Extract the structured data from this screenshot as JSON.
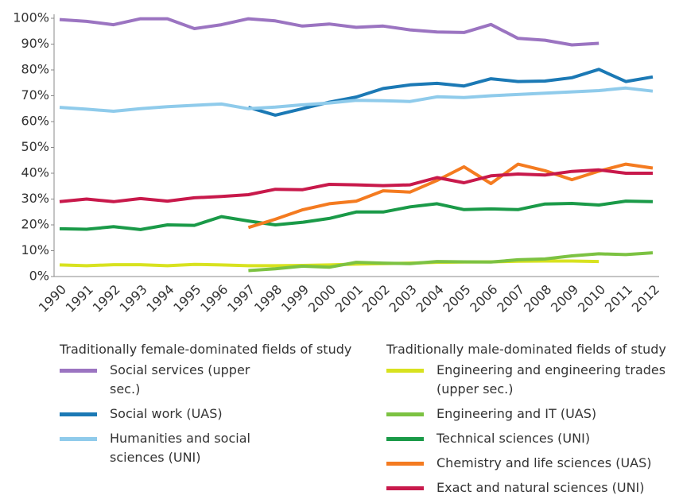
{
  "chart_data": {
    "type": "line",
    "categories": [
      "1990",
      "1991",
      "1992",
      "1993",
      "1994",
      "1995",
      "1996",
      "1997",
      "1998",
      "1999",
      "2000",
      "2001",
      "2002",
      "2003",
      "2004",
      "2005",
      "2006",
      "2007",
      "2008",
      "2009",
      "2010",
      "2011",
      "2012"
    ],
    "ylim": [
      0,
      100
    ],
    "yticks": [
      {
        "value": 0,
        "label": "0%"
      },
      {
        "value": 10,
        "label": "10%"
      },
      {
        "value": 20,
        "label": "20%"
      },
      {
        "value": 30,
        "label": "30%"
      },
      {
        "value": 40,
        "label": "40%"
      },
      {
        "value": 50,
        "label": "50%"
      },
      {
        "value": 60,
        "label": "60%"
      },
      {
        "value": 70,
        "label": "70%"
      },
      {
        "value": 80,
        "label": "80%"
      },
      {
        "value": 90,
        "label": "90%"
      },
      {
        "value": 100,
        "label": "100%"
      }
    ],
    "grid": false,
    "series_groups": [
      {
        "title": "Traditionally female-dominated fields of study",
        "series": [
          {
            "name": "Social services (upper sec.)",
            "color": "#9b74c1",
            "values": [
              99.5,
              98.8,
              97.5,
              99.8,
              99.8,
              96,
              97.5,
              99.8,
              99,
              97,
              97.8,
              96.5,
              97,
              95.5,
              94.7,
              94.5,
              97.6,
              92.2,
              91.5,
              89.7,
              90.3,
              null,
              null
            ]
          },
          {
            "name": "Social work (UAS)",
            "color": "#1b79b5",
            "values": [
              null,
              null,
              null,
              null,
              null,
              null,
              null,
              65.5,
              62.5,
              65,
              67.5,
              69.5,
              72.8,
              74.2,
              74.8,
              73.8,
              76.6,
              75.5,
              75.7,
              77,
              80.2,
              75.5,
              77.3
            ]
          },
          {
            "name": "Humanities and social sciences (UNI)",
            "color": "#8fcbeb",
            "values": [
              65.5,
              64.8,
              64,
              65,
              65.8,
              66.3,
              66.8,
              65,
              65.6,
              66.5,
              67.2,
              68.2,
              68.1,
              67.8,
              69.6,
              69.3,
              70,
              70.5,
              71,
              71.5,
              72,
              73,
              71.8
            ]
          }
        ]
      },
      {
        "title": "Traditionally male-dominated fields of study",
        "series": [
          {
            "name": "Engineering and engineering trades (upper sec.)",
            "color": "#d8e21f",
            "values": [
              4.5,
              4.2,
              4.6,
              4.6,
              4.2,
              4.7,
              4.5,
              4.2,
              4.2,
              4.3,
              4.5,
              4.8,
              5,
              5.2,
              5.5,
              5.6,
              5.7,
              5.9,
              6,
              6,
              5.8,
              null,
              null
            ]
          },
          {
            "name": "Engineering and IT (UAS)",
            "color": "#7cc242",
            "values": [
              null,
              null,
              null,
              null,
              null,
              null,
              null,
              2.3,
              3,
              4,
              3.6,
              5.5,
              5.2,
              5,
              5.8,
              5.7,
              5.6,
              6.5,
              6.8,
              8,
              8.8,
              8.5,
              9.2
            ]
          },
          {
            "name": "Technical sciences (UNI)",
            "color": "#1a9a48",
            "values": [
              18.5,
              18.3,
              19.3,
              18.2,
              20,
              19.8,
              23.2,
              21.5,
              20,
              21,
              22.5,
              25,
              25,
              27,
              28.2,
              25.9,
              26.2,
              25.9,
              28.1,
              28.3,
              27.7,
              29.2,
              29
            ]
          },
          {
            "name": "Chemistry and life sciences (UAS)",
            "color": "#f47b20",
            "values": [
              null,
              null,
              null,
              null,
              null,
              null,
              null,
              19,
              22.2,
              25.8,
              28.2,
              29.2,
              33.2,
              32.7,
              37.2,
              42.5,
              36,
              43.5,
              41,
              37.5,
              40.8,
              43.5,
              42
            ]
          },
          {
            "name": "Exact and natural sciences (UNI)",
            "color": "#c8194b",
            "values": [
              29,
              30,
              29,
              30.2,
              29.2,
              30.5,
              31,
              31.7,
              33.8,
              33.6,
              35.7,
              35.5,
              35.2,
              35.5,
              38.3,
              36.3,
              39,
              39.7,
              39.3,
              40.7,
              41.3,
              40,
              40
            ]
          }
        ]
      }
    ]
  }
}
